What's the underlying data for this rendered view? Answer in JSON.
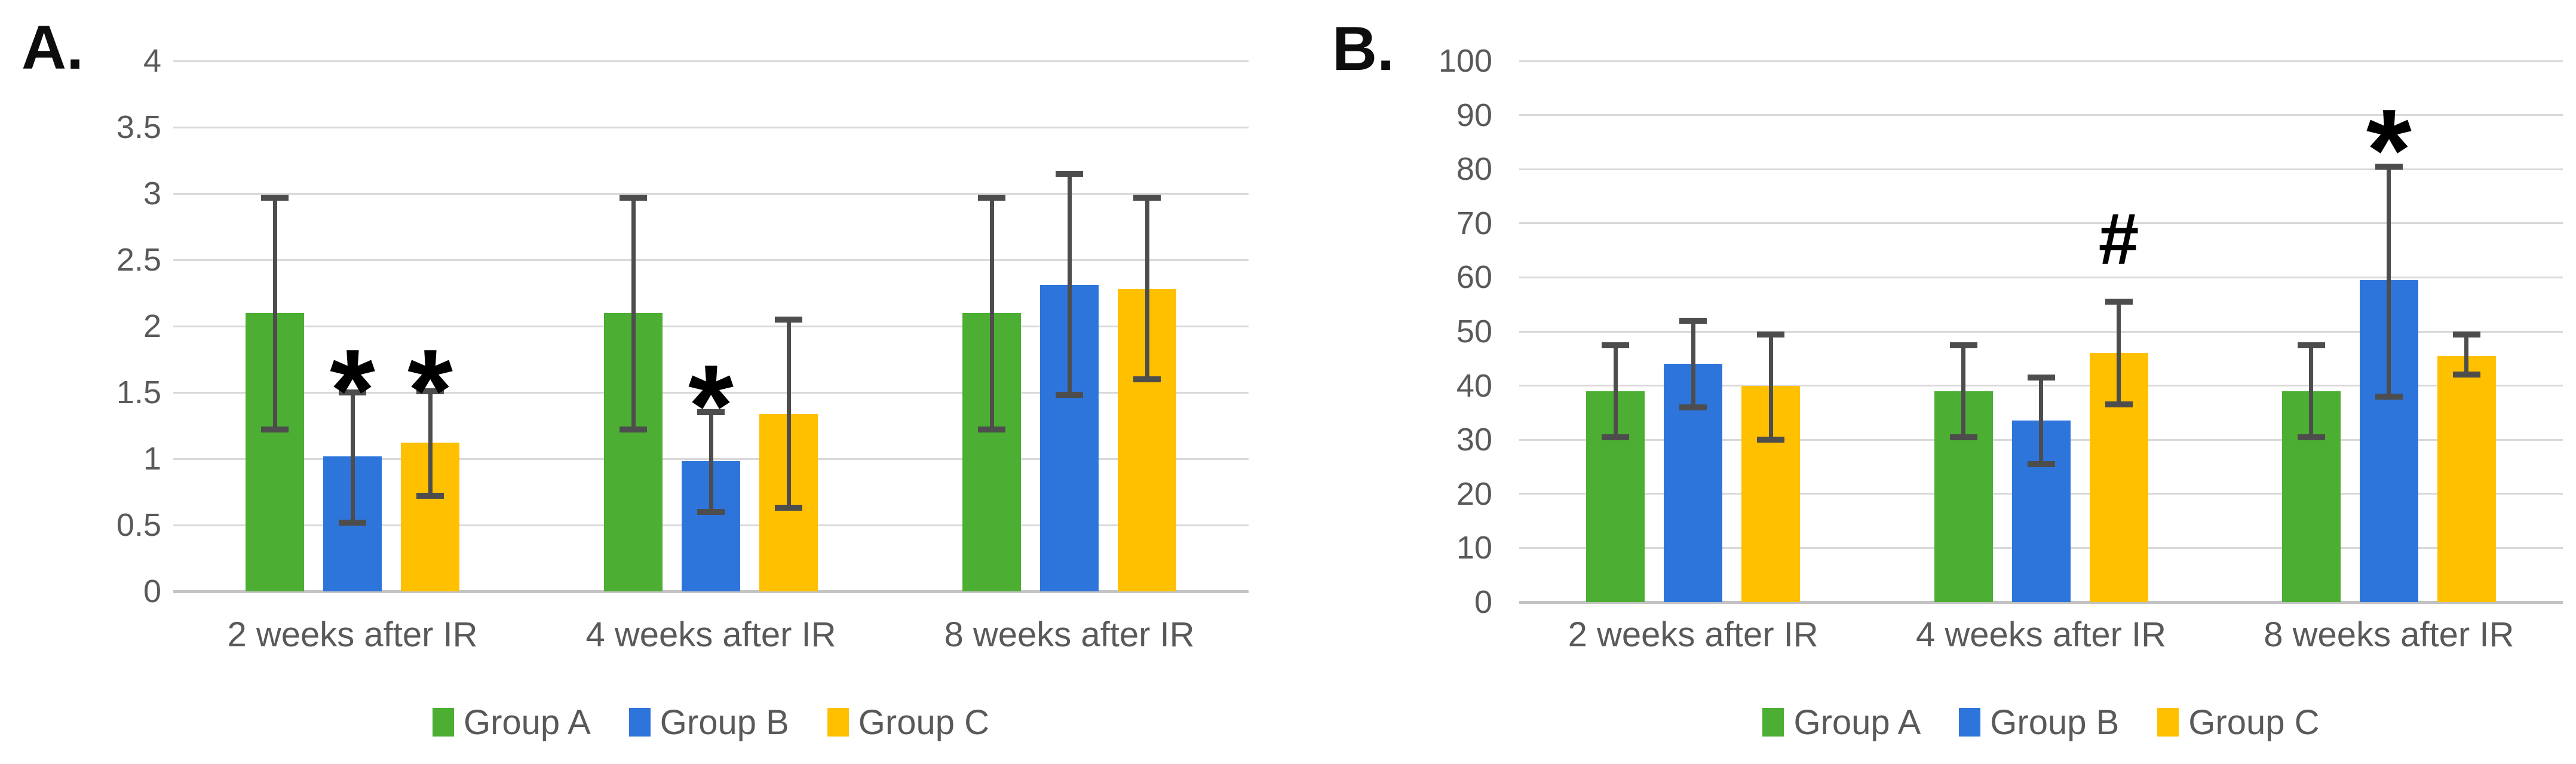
{
  "chart_data": [
    {
      "panel_label": "A.",
      "type": "bar",
      "title": "",
      "xlabel": "",
      "ylabel": "",
      "categories": [
        "2 weeks after IR",
        "4 weeks after IR",
        "8 weeks after IR"
      ],
      "series": [
        {
          "name": "Group A",
          "color": "#4CAE32",
          "values": [
            2.1,
            2.1,
            2.1
          ],
          "error_low": [
            1.22,
            1.22,
            1.22
          ],
          "error_high": [
            2.97,
            2.97,
            2.97
          ]
        },
        {
          "name": "Group B",
          "color": "#2E75DB",
          "values": [
            1.02,
            0.98,
            2.31
          ],
          "error_low": [
            0.52,
            0.6,
            1.48
          ],
          "error_high": [
            1.5,
            1.35,
            3.15
          ]
        },
        {
          "name": "Group C",
          "color": "#FFC000",
          "values": [
            1.12,
            1.34,
            2.28
          ],
          "error_low": [
            0.72,
            0.63,
            1.6
          ],
          "error_high": [
            1.51,
            2.05,
            2.97
          ]
        }
      ],
      "annotations": [
        {
          "symbol": "*",
          "category": 0,
          "series": 1,
          "value": 1.7
        },
        {
          "symbol": "*",
          "category": 0,
          "series": 2,
          "value": 1.7
        },
        {
          "symbol": "*",
          "category": 1,
          "series": 1,
          "value": 1.58
        }
      ],
      "ylim": [
        0,
        4
      ],
      "ystep": 0.5,
      "ytick_labels": [
        "0",
        "0.5",
        "1",
        "1.5",
        "2",
        "2.5",
        "3",
        "3.5",
        "4"
      ],
      "grid": true,
      "error_bars": true,
      "legend_position": "bottom",
      "legend": [
        "Group A",
        "Group B",
        "Group C"
      ]
    },
    {
      "panel_label": "B.",
      "type": "bar",
      "title": "",
      "xlabel": "",
      "ylabel": "",
      "categories": [
        "2 weeks after IR",
        "4 weeks after IR",
        "8 weeks after IR"
      ],
      "series": [
        {
          "name": "Group A",
          "color": "#4CAE32",
          "values": [
            39,
            39,
            39
          ],
          "error_low": [
            30.5,
            30.5,
            30.5
          ],
          "error_high": [
            47.5,
            47.5,
            47.5
          ]
        },
        {
          "name": "Group B",
          "color": "#2E75DB",
          "values": [
            44,
            33.5,
            59.5
          ],
          "error_low": [
            36,
            25.5,
            38
          ],
          "error_high": [
            52,
            41.5,
            80.5
          ]
        },
        {
          "name": "Group C",
          "color": "#FFC000",
          "values": [
            40,
            46,
            45.5
          ],
          "error_low": [
            30,
            36.5,
            42
          ],
          "error_high": [
            49.5,
            55.5,
            49.5
          ]
        }
      ],
      "annotations": [
        {
          "symbol": "#",
          "category": 1,
          "series": 2,
          "value": 68
        },
        {
          "symbol": "*",
          "category": 2,
          "series": 1,
          "value": 88
        }
      ],
      "ylim": [
        0,
        100
      ],
      "ystep": 10,
      "ytick_labels": [
        "0",
        "10",
        "20",
        "30",
        "40",
        "50",
        "60",
        "70",
        "80",
        "90",
        "100"
      ],
      "grid": true,
      "error_bars": true,
      "legend_position": "bottom",
      "legend": [
        "Group A",
        "Group B",
        "Group C"
      ]
    }
  ],
  "colors": {
    "group_a": "#4CAE32",
    "group_b": "#2E75DB",
    "group_c": "#FFC000",
    "axis_text": "#595959",
    "gridline": "#D9D9D9",
    "error_bar": "#4D4D4D"
  }
}
